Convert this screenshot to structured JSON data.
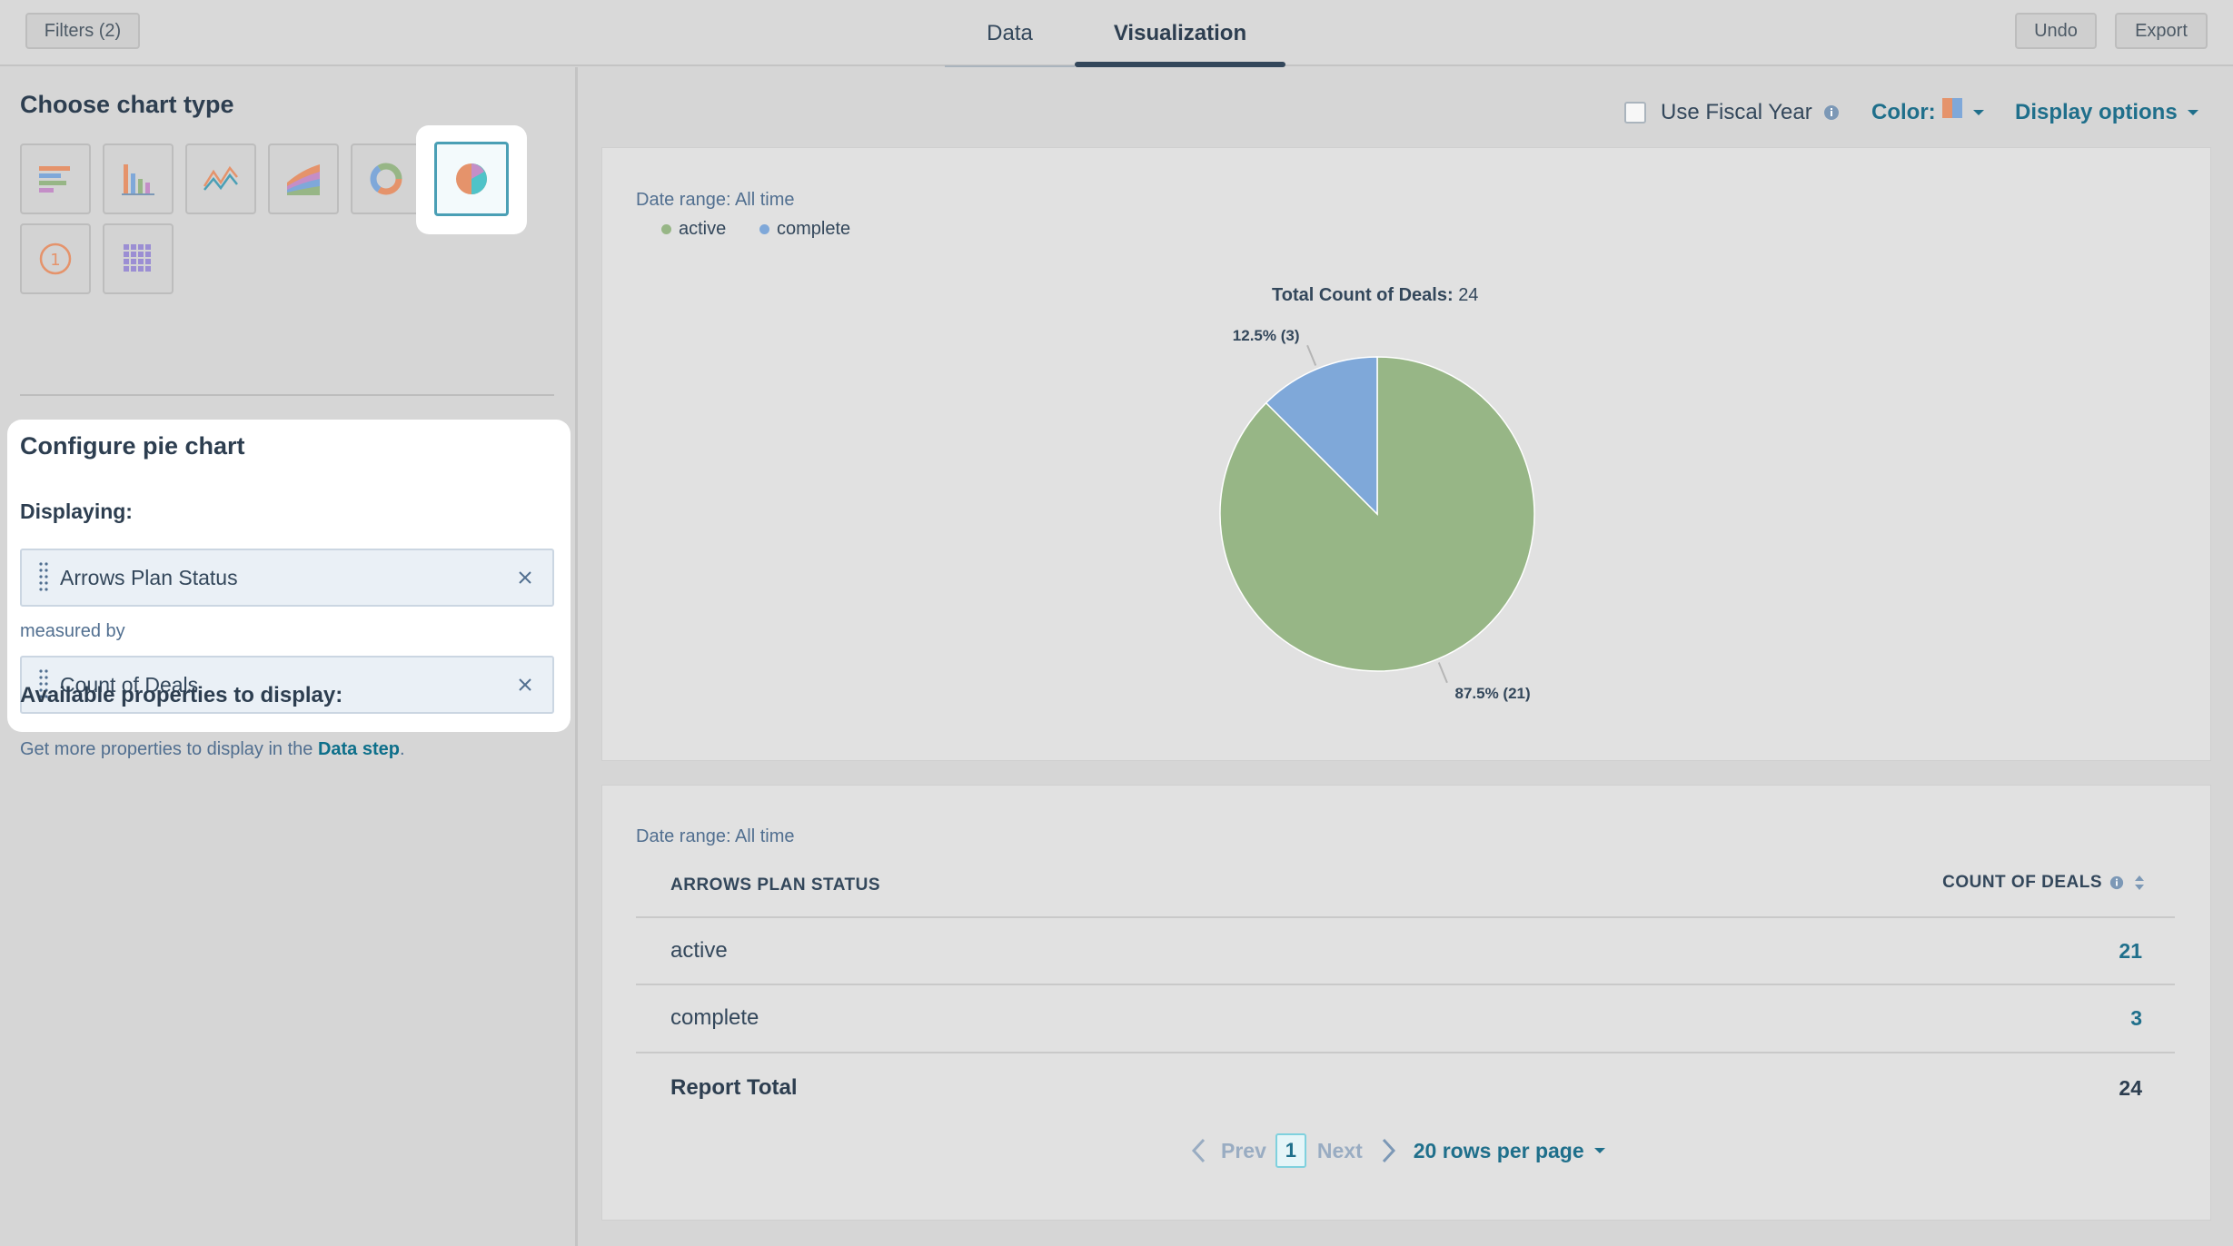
{
  "topbar": {
    "filters_label": "Filters (2)",
    "tabs": [
      {
        "label": "Data"
      },
      {
        "label": "Visualization"
      }
    ],
    "undo_label": "Undo",
    "export_label": "Export"
  },
  "left": {
    "choose_title": "Choose chart type",
    "chart_types": [
      "horizontal-bar",
      "vertical-bar",
      "line",
      "area",
      "donut",
      "pie",
      "kpi",
      "table"
    ],
    "selected_chart_type": "pie",
    "configure_title": "Configure pie chart",
    "displaying_label": "Displaying:",
    "displaying_value": "Arrows Plan Status",
    "measured_by_label": "measured by",
    "measure_value": "Count of Deals",
    "available_title": "Available properties to display:",
    "help_prefix": "Get more properties to display in the ",
    "help_link": "Data step",
    "help_suffix": "."
  },
  "controls": {
    "fiscal_label": "Use Fiscal Year",
    "color_label": "Color:",
    "display_options_label": "Display options"
  },
  "chart_card": {
    "date_range": "Date range: All time",
    "total_label": "Total Count of Deals:",
    "total_value": "24"
  },
  "chart_data": {
    "type": "pie",
    "title": "Total Count of Deals: 24",
    "categories": [
      "active",
      "complete"
    ],
    "values": [
      21,
      3
    ],
    "slice_labels": [
      "87.5% (21)",
      "12.5% (3)"
    ],
    "colors": [
      "#97b686",
      "#7fa8d9"
    ],
    "legend": "top-left"
  },
  "table_card": {
    "date_range": "Date range: All time",
    "col1_header": "ARROWS PLAN STATUS",
    "col2_header": "COUNT OF DEALS",
    "rows": [
      {
        "label": "active",
        "value": "21"
      },
      {
        "label": "complete",
        "value": "3"
      }
    ],
    "total_label": "Report Total",
    "total_value": "24",
    "pager": {
      "prev": "Prev",
      "page": "1",
      "next": "Next",
      "rows_per_page": "20 rows per page"
    }
  }
}
